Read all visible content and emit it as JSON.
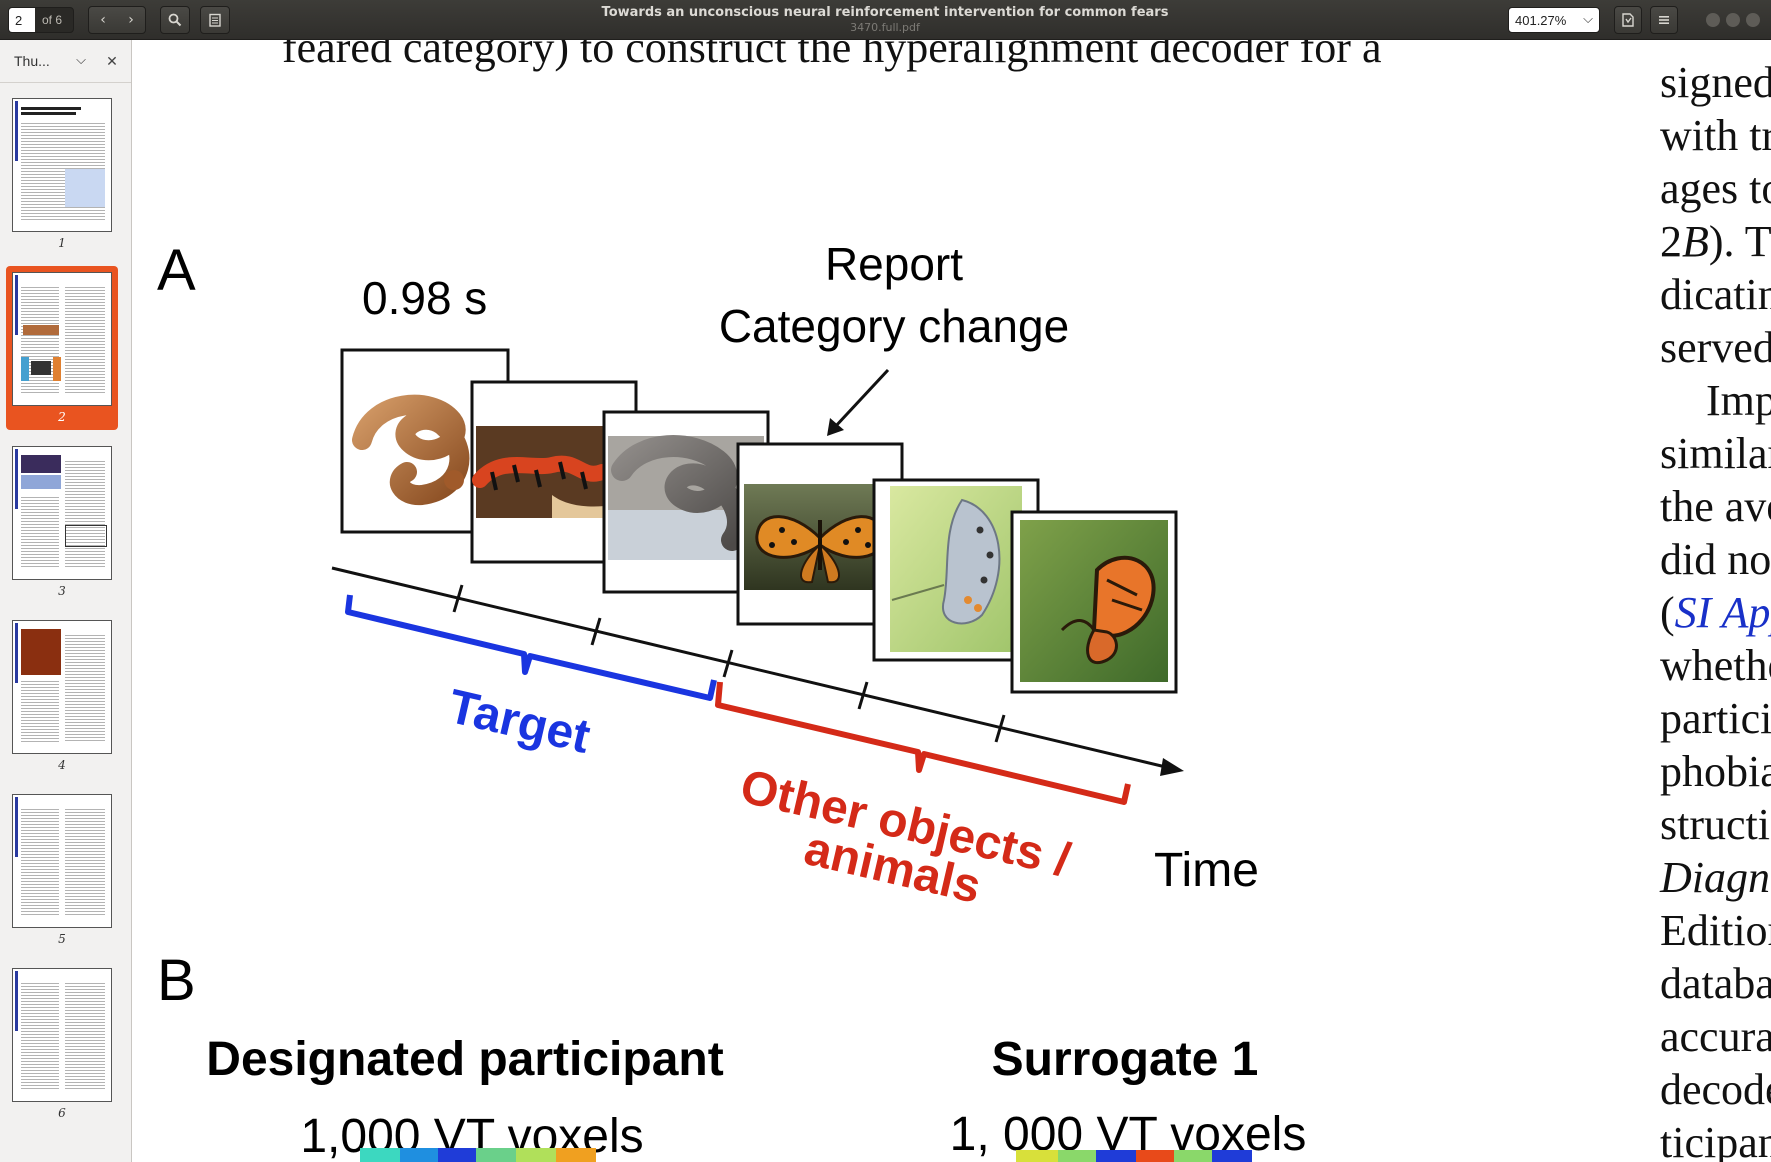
{
  "toolbar": {
    "page_current": "2",
    "page_total": "of 6",
    "title": "Towards an unconscious neural reinforcement intervention for common fears",
    "filename": "3470.full.pdf",
    "zoom": "401.27%"
  },
  "sidebar": {
    "mode_label": "Thu...",
    "thumbnails": [
      {
        "num": "1"
      },
      {
        "num": "2"
      },
      {
        "num": "3"
      },
      {
        "num": "4"
      },
      {
        "num": "5"
      },
      {
        "num": "6"
      }
    ]
  },
  "document": {
    "top_line": "feared category) to construct the hyperalignment decoder for a",
    "figure": {
      "panel_a": "A",
      "duration": "0.98 s",
      "report_line1": "Report",
      "report_line2": "Category change",
      "target_label": "Target",
      "other_line1": "Other objects /",
      "other_line2": "animals",
      "time_label": "Time",
      "panel_b": "B",
      "designated": "Designated participant",
      "designated_voxels": "1,000 VT voxels",
      "surrogate": "Surrogate 1",
      "surrogate_voxels": "1, 000 VT voxels"
    },
    "right_column": [
      {
        "text": "signed-rank"
      },
      {
        "text": "with traditio"
      },
      {
        "text": "ages to the"
      },
      {
        "pre": "2",
        "pre_italic": "B",
        "text": "). These"
      },
      {
        "text": "dicating tha"
      },
      {
        "text": "served by hy"
      },
      {
        "text": "Importar"
      },
      {
        "text": "similar fear"
      },
      {
        "text": "the average"
      },
      {
        "text": "did not mo"
      },
      {
        "pre": "(",
        "link": "SI Append"
      },
      {
        "text": "whether hyp"
      },
      {
        "text": "participants"
      },
      {
        "text": "phobias, by"
      },
      {
        "text": "struction se"
      },
      {
        "text": "Diagnostic"
      },
      {
        "text": "Edition crit"
      },
      {
        "text": "database ar"
      },
      {
        "text": "accuracy of"
      },
      {
        "text": "decoders co"
      },
      {
        "text": "ticipants ha"
      }
    ]
  },
  "colors": {
    "accent": "#e95420",
    "target": "#1a35e0",
    "other": "#d42a18",
    "link": "#1830c8"
  },
  "icons": [
    "back-icon",
    "forward-icon",
    "search-icon",
    "annotations-icon",
    "save-icon",
    "menu-icon",
    "minimize-icon",
    "maximize-icon",
    "close-icon",
    "chevron-down-icon"
  ]
}
